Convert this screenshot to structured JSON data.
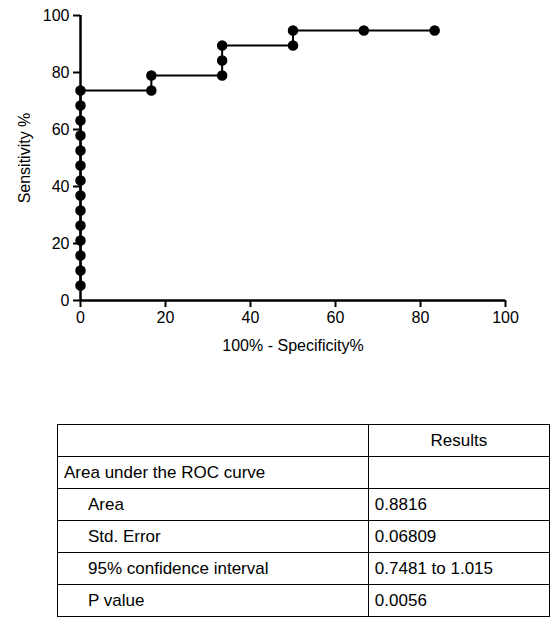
{
  "chart_data": {
    "type": "line",
    "marker": "circle",
    "color": "#000000",
    "xlabel": "100% - Specificity%",
    "ylabel": "Sensitivity %",
    "x": [
      0,
      0,
      0,
      0,
      0,
      0,
      0,
      0,
      0,
      0,
      0,
      0,
      0,
      0,
      16.67,
      16.67,
      33.33,
      33.33,
      33.33,
      50,
      50,
      66.67,
      83.33
    ],
    "values": [
      5.26,
      10.53,
      15.79,
      21.05,
      26.32,
      31.58,
      36.84,
      42.11,
      47.37,
      52.63,
      57.89,
      63.16,
      68.42,
      73.68,
      73.68,
      78.95,
      78.95,
      84.21,
      89.47,
      89.47,
      94.74,
      94.74,
      94.74
    ],
    "xlim": [
      0,
      100
    ],
    "xticks": [
      0,
      20,
      40,
      60,
      80,
      100
    ],
    "ylim": [
      0,
      100
    ],
    "yticks": [
      0,
      20,
      40,
      60,
      80,
      100
    ],
    "grid": false
  },
  "table": {
    "column_header": "Results",
    "section": "Area under the ROC curve",
    "rows": [
      {
        "label": "Area",
        "value": "0.8816"
      },
      {
        "label": "Std. Error",
        "value": "0.06809"
      },
      {
        "label": "95% confidence interval",
        "value": "0.7481 to 1.015"
      },
      {
        "label": "P value",
        "value": "0.0056"
      }
    ]
  }
}
